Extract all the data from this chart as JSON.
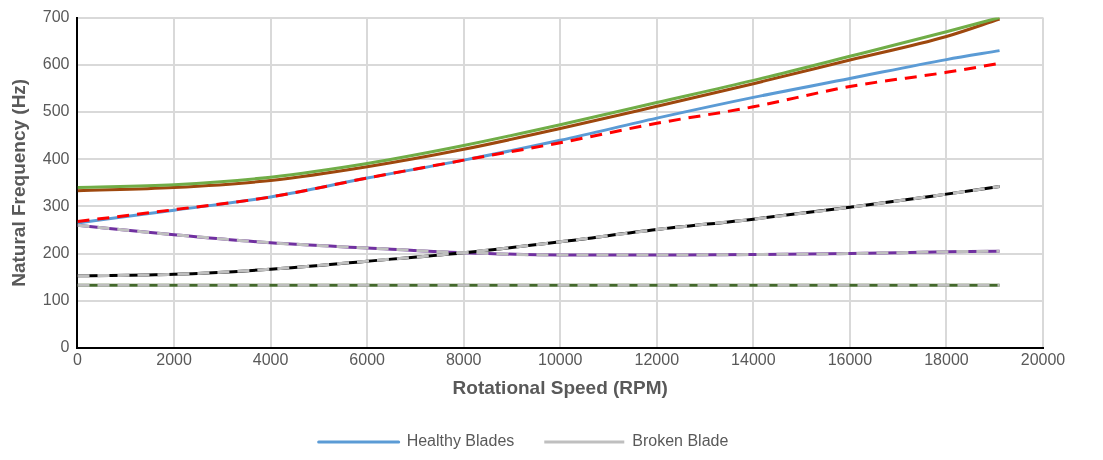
{
  "chart_data": {
    "type": "line",
    "xlabel": "Rotational Speed (RPM)",
    "ylabel": "Natural Frequency (Hz)",
    "x": [
      0,
      2000,
      4000,
      6000,
      8000,
      10000,
      12000,
      14000,
      16000,
      18000,
      19100
    ],
    "xlim": [
      0,
      20000
    ],
    "xticks": [
      0,
      2000,
      4000,
      6000,
      8000,
      10000,
      12000,
      14000,
      16000,
      18000,
      20000
    ],
    "ylim": [
      0,
      700
    ],
    "yticks": [
      0,
      100,
      200,
      300,
      400,
      500,
      600,
      700
    ],
    "grid": true,
    "legend": "bottom",
    "marker": "none",
    "series": [
      {
        "color": "#70ad47",
        "line_style": "solid",
        "values": [
          340,
          346,
          362,
          391,
          429,
          473,
          520,
          567,
          618,
          670,
          700
        ]
      },
      {
        "color": "#9e480e",
        "line_style": "solid",
        "values": [
          333,
          340,
          355,
          384,
          421,
          465,
          512,
          560,
          610,
          660,
          697
        ]
      },
      {
        "name": "Healthy Blades",
        "color": "#5b9bd5",
        "line_style": "solid",
        "values": [
          265,
          292,
          320,
          360,
          398,
          440,
          487,
          531,
          571,
          611,
          630
        ]
      },
      {
        "color": "#ff0000",
        "line_style": "dashed",
        "values": [
          268,
          293,
          320,
          360,
          398,
          435,
          476,
          511,
          554,
          584,
          603
        ]
      },
      {
        "color": "#000000",
        "line_style": "solid",
        "values": [
          153,
          156,
          167,
          184,
          202,
          225,
          251,
          273,
          298,
          326,
          342
        ]
      },
      {
        "color": "#7030a0",
        "line_style": "solid",
        "values": [
          260,
          240,
          223,
          212,
          202,
          197,
          197,
          198,
          200,
          204,
          205
        ]
      },
      {
        "color": "#43682b",
        "line_style": "solid",
        "values": [
          133,
          133,
          133,
          133,
          133,
          133,
          133,
          133,
          133,
          133,
          133
        ]
      },
      {
        "name": "Broken Blade",
        "color": "#bfbfbf",
        "line_style": "dashed",
        "values": [
          153,
          156,
          167,
          184,
          202,
          225,
          251,
          273,
          298,
          326,
          342
        ]
      },
      {
        "color": "#bfbfbf",
        "line_style": "dashed",
        "values": [
          260,
          240,
          223,
          212,
          202,
          197,
          197,
          198,
          200,
          204,
          205
        ]
      },
      {
        "color": "#bfbfbf",
        "line_style": "dashed",
        "values": [
          133,
          133,
          133,
          133,
          133,
          133,
          133,
          133,
          133,
          133,
          133
        ]
      }
    ]
  }
}
